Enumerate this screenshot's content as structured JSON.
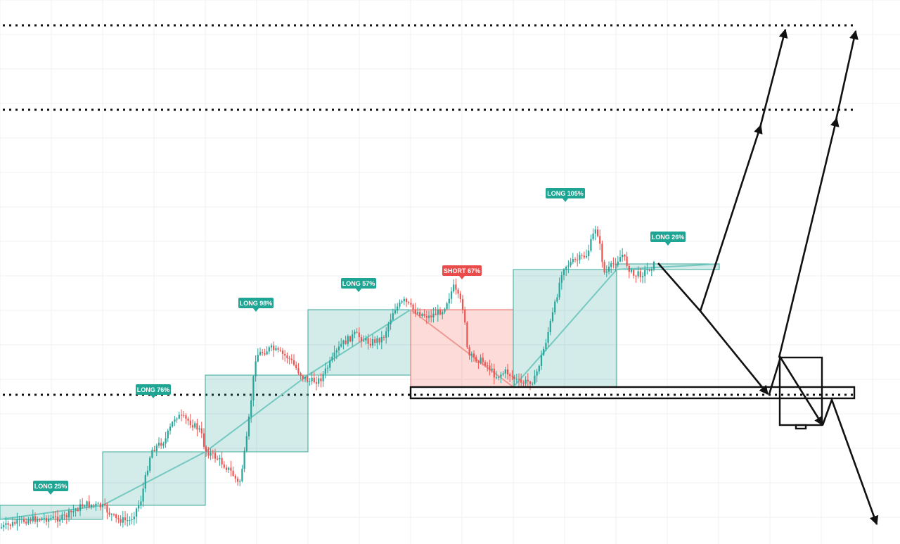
{
  "chart_data": {
    "type": "candlestick",
    "title": "",
    "xlabel": "",
    "ylabel": "",
    "grid": true,
    "colors": {
      "up": "#26a69a",
      "down": "#ef5350",
      "long_label": "#1fa593",
      "short_label": "#ea4b4b"
    },
    "annotations": [
      {
        "text": "LONG 25%",
        "side": "long"
      },
      {
        "text": "LONG 76%",
        "side": "long"
      },
      {
        "text": "LONG 98%",
        "side": "long"
      },
      {
        "text": "LONG 57%",
        "side": "long"
      },
      {
        "text": "SHORT 67%",
        "side": "short"
      },
      {
        "text": "LONG 105%",
        "side": "long"
      },
      {
        "text": "LONG 26%",
        "side": "long"
      }
    ]
  }
}
